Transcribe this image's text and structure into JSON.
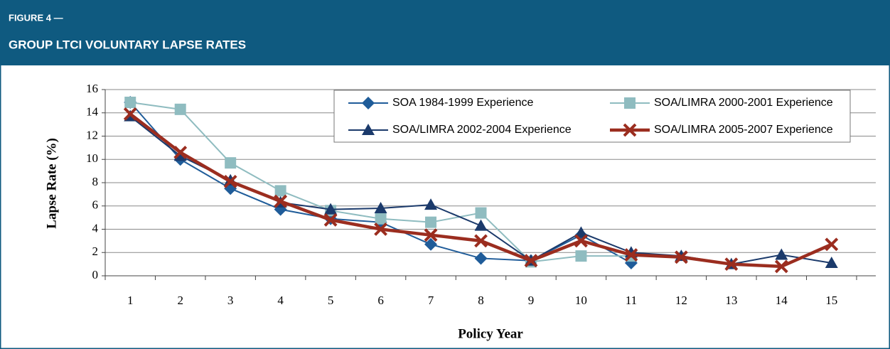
{
  "header": {
    "label": "FIGURE 4 —",
    "title": "GROUP LTCI VOLUNTARY LAPSE RATES"
  },
  "chart_data": {
    "type": "line",
    "y_label": "Lapse Rate (%)",
    "x_label": "Policy Year",
    "categories": [
      "1",
      "2",
      "3",
      "4",
      "5",
      "6",
      "7",
      "8",
      "9",
      "10",
      "11",
      "12",
      "13",
      "14",
      "15"
    ],
    "ylim": [
      0,
      16
    ],
    "yticks": [
      0,
      2,
      4,
      6,
      8,
      10,
      12,
      14,
      16
    ],
    "grid": true,
    "series": [
      {
        "name": "SOA 1984-1999 Experience",
        "color": "#1f5c99",
        "marker": "diamond",
        "values": [
          14.9,
          10.0,
          7.5,
          5.7,
          4.9,
          4.6,
          2.7,
          1.5,
          1.3,
          3.5,
          1.1,
          null,
          null,
          null,
          null
        ]
      },
      {
        "name": "SOA/LIMRA 2000-2001 Experience",
        "color": "#8fbcc0",
        "marker": "square",
        "values": [
          14.9,
          14.3,
          9.7,
          7.3,
          5.6,
          4.9,
          4.6,
          5.4,
          1.2,
          1.7,
          1.7,
          null,
          null,
          null,
          null
        ]
      },
      {
        "name": "SOA/LIMRA 2002-2004 Experience",
        "color": "#1b3a6b",
        "marker": "triangle",
        "values": [
          13.7,
          10.3,
          8.2,
          6.3,
          5.7,
          5.8,
          6.1,
          4.3,
          1.3,
          3.7,
          2.0,
          1.7,
          1.0,
          1.8,
          1.1
        ]
      },
      {
        "name": "SOA/LIMRA 2005-2007 Experience",
        "color": "#9b2d1f",
        "marker": "x",
        "values": [
          13.9,
          10.6,
          8.1,
          6.4,
          4.8,
          4.0,
          3.5,
          3.0,
          1.3,
          3.0,
          1.8,
          1.6,
          1.0,
          0.8,
          2.7
        ]
      }
    ]
  }
}
